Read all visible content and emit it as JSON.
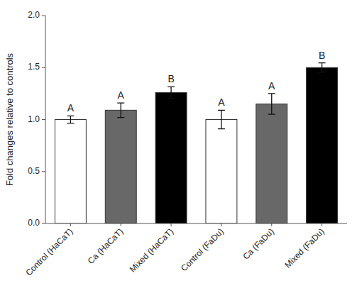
{
  "chart_data": {
    "type": "bar",
    "ylabel": "Fold changes relative to controls",
    "categories": [
      "Control (HaCaT)",
      "Ca (HaCaT)",
      "Mixed (HaCaT)",
      "Control (FaDu)",
      "Ca (FaDu)",
      "Mixed (FaDu)"
    ],
    "values": [
      1.0,
      1.09,
      1.26,
      1.0,
      1.15,
      1.5
    ],
    "errors": [
      0.035,
      0.07,
      0.055,
      0.09,
      0.1,
      0.045
    ],
    "colors": [
      "white",
      "#686868",
      "black",
      "white",
      "#686868",
      "black"
    ],
    "annotations": [
      "A",
      "A",
      "B",
      "A",
      "A",
      "B"
    ],
    "ylim": [
      0,
      2.0
    ],
    "yticks": [
      {
        "value": 0.0,
        "label": "0.0"
      },
      0.5,
      {
        "value": 1.0,
        "label": "1.0"
      },
      1.5,
      {
        "value": 2.0,
        "label": "2.0"
      }
    ],
    "grid": false
  }
}
